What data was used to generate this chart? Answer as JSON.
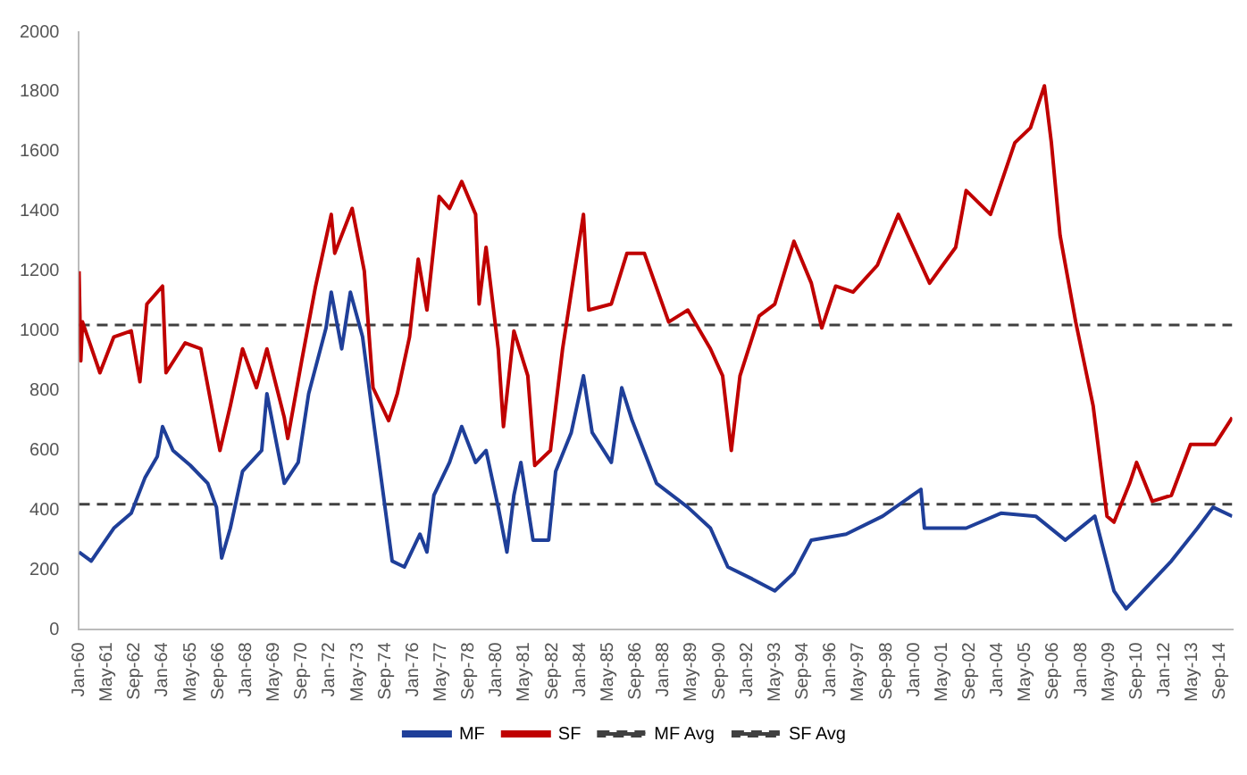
{
  "chart_data": {
    "type": "line",
    "xlim": [
      "1960-01",
      "2015-04"
    ],
    "ylim": [
      0,
      2000
    ],
    "yticks": [
      0,
      200,
      400,
      600,
      800,
      1000,
      1200,
      1400,
      1600,
      1800,
      2000
    ],
    "xticks": [
      {
        "value": "1960-01",
        "label": "Jan-60"
      },
      {
        "value": "1961-05",
        "label": "May-61"
      },
      {
        "value": "1962-09",
        "label": "Sep-62"
      },
      {
        "value": "1964-01",
        "label": "Jan-64"
      },
      {
        "value": "1965-05",
        "label": "May-65"
      },
      {
        "value": "1966-09",
        "label": "Sep-66"
      },
      {
        "value": "1968-01",
        "label": "Jan-68"
      },
      {
        "value": "1969-05",
        "label": "May-69"
      },
      {
        "value": "1970-09",
        "label": "Sep-70"
      },
      {
        "value": "1972-01",
        "label": "Jan-72"
      },
      {
        "value": "1973-05",
        "label": "May-73"
      },
      {
        "value": "1974-09",
        "label": "Sep-74"
      },
      {
        "value": "1976-01",
        "label": "Jan-76"
      },
      {
        "value": "1977-05",
        "label": "May-77"
      },
      {
        "value": "1978-09",
        "label": "Sep-78"
      },
      {
        "value": "1980-01",
        "label": "Jan-80"
      },
      {
        "value": "1981-05",
        "label": "May-81"
      },
      {
        "value": "1982-09",
        "label": "Sep-82"
      },
      {
        "value": "1984-01",
        "label": "Jan-84"
      },
      {
        "value": "1985-05",
        "label": "May-85"
      },
      {
        "value": "1986-09",
        "label": "Sep-86"
      },
      {
        "value": "1988-01",
        "label": "Jan-88"
      },
      {
        "value": "1989-05",
        "label": "May-89"
      },
      {
        "value": "1990-09",
        "label": "Sep-90"
      },
      {
        "value": "1992-01",
        "label": "Jan-92"
      },
      {
        "value": "1993-05",
        "label": "May-93"
      },
      {
        "value": "1994-09",
        "label": "Sep-94"
      },
      {
        "value": "1996-01",
        "label": "Jan-96"
      },
      {
        "value": "1997-05",
        "label": "May-97"
      },
      {
        "value": "1998-09",
        "label": "Sep-98"
      },
      {
        "value": "2000-01",
        "label": "Jan-00"
      },
      {
        "value": "2001-05",
        "label": "May-01"
      },
      {
        "value": "2002-09",
        "label": "Sep-02"
      },
      {
        "value": "2004-01",
        "label": "Jan-04"
      },
      {
        "value": "2005-05",
        "label": "May-05"
      },
      {
        "value": "2006-09",
        "label": "Sep-06"
      },
      {
        "value": "2008-01",
        "label": "Jan-08"
      },
      {
        "value": "2009-05",
        "label": "May-09"
      },
      {
        "value": "2010-09",
        "label": "Sep-10"
      },
      {
        "value": "2012-01",
        "label": "Jan-12"
      },
      {
        "value": "2013-05",
        "label": "May-13"
      },
      {
        "value": "2014-09",
        "label": "Sep-14"
      }
    ],
    "grid": false,
    "legend": "bottom",
    "marker": "none",
    "series": [
      {
        "name": "MF",
        "color": "#1f3f99",
        "x": [
          "1960-01",
          "1960-08",
          "1961-09",
          "1962-07",
          "1963-03",
          "1963-10",
          "1964-01",
          "1964-07",
          "1965-05",
          "1966-03",
          "1966-08",
          "1966-11",
          "1967-04",
          "1967-11",
          "1968-10",
          "1969-01",
          "1969-11",
          "1970-07",
          "1971-01",
          "1971-11",
          "1972-02",
          "1972-08",
          "1973-01",
          "1973-08",
          "1974-02",
          "1974-08",
          "1975-01",
          "1975-08",
          "1976-05",
          "1976-09",
          "1977-01",
          "1977-10",
          "1978-05",
          "1979-01",
          "1979-07",
          "1980-02",
          "1980-07",
          "1980-11",
          "1981-03",
          "1981-10",
          "1982-07",
          "1982-11",
          "1983-08",
          "1984-03",
          "1984-08",
          "1985-07",
          "1986-01",
          "1986-07",
          "1987-09",
          "1989-03",
          "1990-04",
          "1991-02",
          "1992-04",
          "1993-05",
          "1994-04",
          "1995-02",
          "1996-10",
          "1998-07",
          "2000-05",
          "2000-07",
          "2002-07",
          "2004-03",
          "2005-11",
          "2007-04",
          "2008-09",
          "2009-08",
          "2010-03",
          "2011-04",
          "2012-05",
          "2013-08",
          "2014-05",
          "2015-04"
        ],
        "values": [
          260,
          230,
          340,
          390,
          510,
          580,
          680,
          600,
          550,
          490,
          410,
          240,
          340,
          530,
          600,
          790,
          490,
          560,
          790,
          1010,
          1130,
          940,
          1130,
          980,
          710,
          450,
          230,
          210,
          320,
          260,
          450,
          560,
          680,
          560,
          600,
          410,
          260,
          450,
          560,
          300,
          300,
          530,
          660,
          850,
          660,
          560,
          810,
          700,
          490,
          410,
          340,
          210,
          170,
          130,
          190,
          300,
          320,
          380,
          470,
          340,
          340,
          390,
          380,
          300,
          380,
          130,
          70,
          150,
          230,
          340,
          410,
          380
        ]
      },
      {
        "name": "SF",
        "color": "#c00000",
        "x": [
          "1960-01",
          "1960-02",
          "1960-03",
          "1961-01",
          "1961-09",
          "1962-07",
          "1962-12",
          "1963-04",
          "1964-01",
          "1964-03",
          "1965-02",
          "1965-11",
          "1966-10",
          "1967-04",
          "1967-11",
          "1968-07",
          "1969-01",
          "1969-11",
          "1970-01",
          "1970-09",
          "1971-05",
          "1972-02",
          "1972-04",
          "1973-02",
          "1973-09",
          "1974-02",
          "1974-11",
          "1975-04",
          "1975-11",
          "1976-04",
          "1976-09",
          "1977-04",
          "1977-10",
          "1978-05",
          "1979-01",
          "1979-03",
          "1979-07",
          "1980-02",
          "1980-05",
          "1980-11",
          "1981-07",
          "1981-11",
          "1982-08",
          "1983-03",
          "1983-08",
          "1984-03",
          "1984-06",
          "1985-07",
          "1986-04",
          "1987-02",
          "1988-04",
          "1989-03",
          "1990-04",
          "1990-11",
          "1991-04",
          "1991-09",
          "1992-08",
          "1993-05",
          "1994-04",
          "1995-02",
          "1995-08",
          "1996-04",
          "1997-02",
          "1998-04",
          "1999-04",
          "1999-11",
          "2000-10",
          "2002-01",
          "2002-07",
          "2003-09",
          "2004-11",
          "2005-08",
          "2006-04",
          "2006-08",
          "2007-01",
          "2007-10",
          "2008-08",
          "2009-04",
          "2009-08",
          "2010-05",
          "2010-09",
          "2011-06",
          "2012-05",
          "2013-04",
          "2014-06",
          "2015-04"
        ],
        "values": [
          1200,
          900,
          1030,
          860,
          980,
          1000,
          830,
          1090,
          1150,
          860,
          960,
          940,
          600,
          750,
          940,
          810,
          940,
          710,
          640,
          900,
          1150,
          1390,
          1260,
          1410,
          1200,
          810,
          700,
          790,
          980,
          1240,
          1070,
          1450,
          1410,
          1500,
          1390,
          1090,
          1280,
          940,
          680,
          1000,
          850,
          550,
          600,
          940,
          1130,
          1390,
          1070,
          1090,
          1260,
          1260,
          1030,
          1070,
          940,
          850,
          600,
          850,
          1050,
          1090,
          1300,
          1160,
          1010,
          1150,
          1130,
          1220,
          1390,
          1300,
          1160,
          1280,
          1470,
          1390,
          1630,
          1680,
          1820,
          1630,
          1320,
          1030,
          750,
          380,
          360,
          490,
          560,
          430,
          450,
          620,
          620,
          710
        ]
      },
      {
        "name": "MF Avg",
        "color": "#404040",
        "line_style": "dashed",
        "x": [
          "1960-01",
          "2015-04"
        ],
        "values": [
          420,
          420
        ]
      },
      {
        "name": "SF Avg",
        "color": "#404040",
        "line_style": "dashed",
        "x": [
          "1960-01",
          "2015-04"
        ],
        "values": [
          1020,
          1020
        ]
      }
    ]
  }
}
